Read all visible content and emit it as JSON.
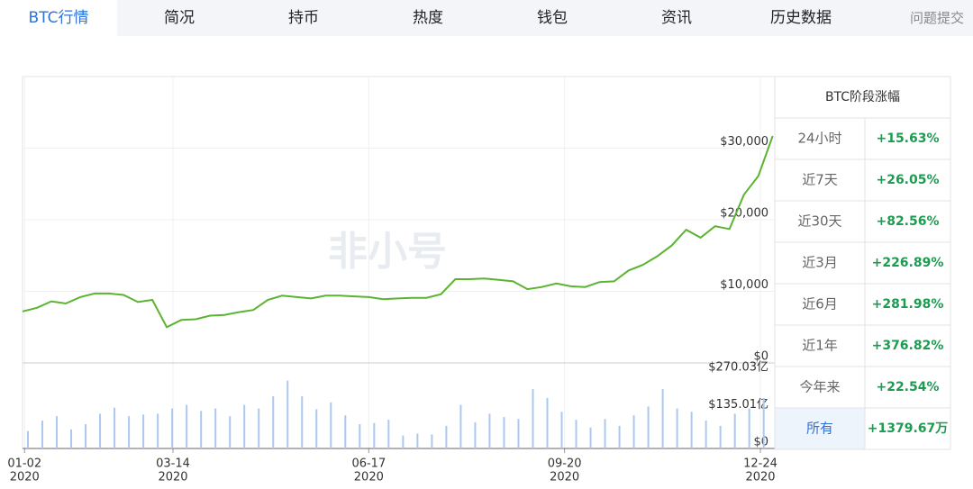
{
  "tabs": [
    "BTC行情",
    "简况",
    "持币",
    "热度",
    "钱包",
    "资讯",
    "历史数据",
    "问题提交"
  ],
  "chart_data": {
    "type": "line",
    "watermark": "非小号",
    "x": [
      "2020-01-01",
      "2020-01-08",
      "2020-01-15",
      "2020-01-22",
      "2020-01-29",
      "2020-02-05",
      "2020-02-12",
      "2020-02-19",
      "2020-02-26",
      "2020-03-04",
      "2020-03-11",
      "2020-03-18",
      "2020-03-25",
      "2020-04-01",
      "2020-04-08",
      "2020-04-15",
      "2020-04-22",
      "2020-04-29",
      "2020-05-06",
      "2020-05-13",
      "2020-05-20",
      "2020-05-27",
      "2020-06-03",
      "2020-06-10",
      "2020-06-17",
      "2020-06-24",
      "2020-07-01",
      "2020-07-08",
      "2020-07-15",
      "2020-07-22",
      "2020-07-29",
      "2020-08-05",
      "2020-08-12",
      "2020-08-19",
      "2020-08-26",
      "2020-09-02",
      "2020-09-09",
      "2020-09-16",
      "2020-09-23",
      "2020-09-30",
      "2020-10-07",
      "2020-10-14",
      "2020-10-21",
      "2020-10-28",
      "2020-11-04",
      "2020-11-11",
      "2020-11-18",
      "2020-11-25",
      "2020-12-02",
      "2020-12-09",
      "2020-12-16",
      "2020-12-23",
      "2020-12-30"
    ],
    "xlim": [
      "2020-01-01",
      "2020-12-31"
    ],
    "xticks": [
      {
        "value": "2020-01-02",
        "label": [
          "01-02",
          "2020"
        ]
      },
      {
        "value": "2020-03-14",
        "label": [
          "03-14",
          "2020"
        ]
      },
      {
        "value": "2020-06-17",
        "label": [
          "06-17",
          "2020"
        ]
      },
      {
        "value": "2020-09-20",
        "label": [
          "09-20",
          "2020"
        ]
      },
      {
        "value": "2020-12-24",
        "label": [
          "12-24",
          "2020"
        ]
      }
    ],
    "ylim": [
      0,
      40000
    ],
    "yticks": [
      {
        "value": 0,
        "label": "$0"
      },
      {
        "value": 10000,
        "label": "$10,000"
      },
      {
        "value": 20000,
        "label": "$20,000"
      },
      {
        "value": 30000,
        "label": "$30,000"
      }
    ],
    "y2lim": [
      0,
      310
    ],
    "y2ticks": [
      {
        "value": 0,
        "label": "$0"
      },
      {
        "value": 135.01,
        "label": "$135.01亿"
      },
      {
        "value": 270.03,
        "label": "$270.03亿"
      }
    ],
    "grid": true,
    "series": [
      {
        "type": "line",
        "color": "#5bb431",
        "values": [
          7200,
          7700,
          8600,
          8300,
          9200,
          9700,
          9700,
          9500,
          8500,
          8800,
          5000,
          6000,
          6100,
          6600,
          6700,
          7100,
          7400,
          8800,
          9400,
          9200,
          9000,
          9400,
          9400,
          9300,
          9200,
          8900,
          9000,
          9100,
          9100,
          9600,
          11700,
          11700,
          11800,
          11600,
          11400,
          10300,
          10600,
          11100,
          10700,
          10600,
          11300,
          11400,
          12900,
          13700,
          14900,
          16400,
          18600,
          17500,
          19100,
          18700,
          23500,
          26100,
          31700
        ]
      },
      {
        "type": "bar",
        "axis": "y2",
        "color": "#aac9f1",
        "values": [
          63,
          101,
          117,
          69,
          88,
          126,
          148,
          117,
          123,
          126,
          145,
          158,
          136,
          145,
          117,
          158,
          145,
          189,
          246,
          189,
          142,
          167,
          120,
          88,
          92,
          104,
          47,
          54,
          51,
          82,
          158,
          95,
          126,
          114,
          107,
          215,
          183,
          133,
          104,
          76,
          107,
          82,
          120,
          152,
          215,
          145,
          133,
          101,
          82,
          126,
          145,
          183,
          120
        ]
      }
    ]
  },
  "stats_table": {
    "title": "BTC阶段涨幅",
    "rows": [
      [
        "24小时",
        "+15.63%"
      ],
      [
        "近7天",
        "+26.05%"
      ],
      [
        "近30天",
        "+82.56%"
      ],
      [
        "近3月",
        "+226.89%"
      ],
      [
        "近6月",
        "+281.98%"
      ],
      [
        "近1年",
        "+376.82%"
      ],
      [
        "今年来",
        "+22.54%"
      ],
      [
        "所有",
        "+1379.67万"
      ]
    ]
  }
}
